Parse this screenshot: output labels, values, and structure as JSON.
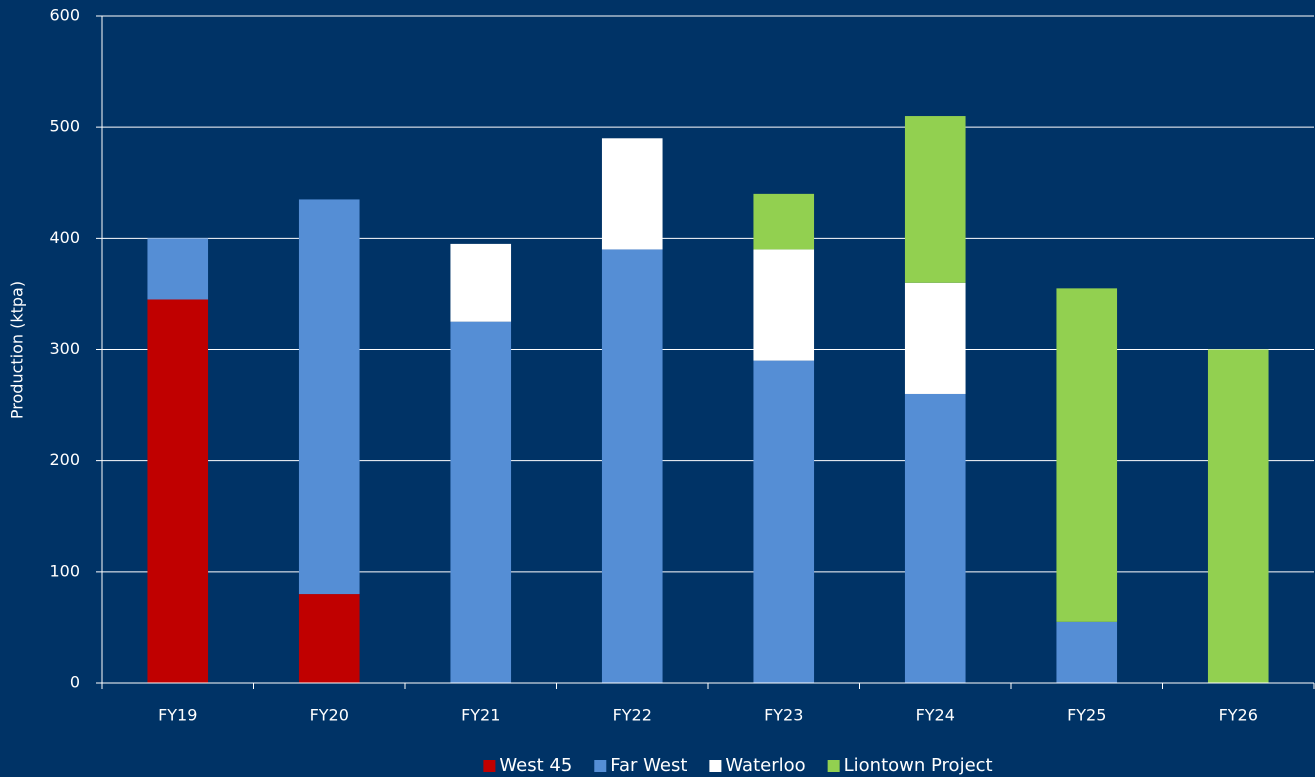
{
  "chart_data": {
    "type": "stacked_bar",
    "y_label": "Production (ktpa)",
    "categories": [
      "FY19",
      "FY20",
      "FY21",
      "FY22",
      "FY23",
      "FY24",
      "FY25",
      "FY26"
    ],
    "series": [
      {
        "name": "West 45",
        "color": "#c00000",
        "values": [
          345,
          80,
          null,
          null,
          null,
          null,
          null,
          null
        ]
      },
      {
        "name": "Far West",
        "color": "#558ed5",
        "values": [
          55,
          355,
          325,
          390,
          290,
          260,
          55,
          null
        ]
      },
      {
        "name": "Waterloo",
        "color": "#ffffff",
        "values": [
          null,
          null,
          70,
          100,
          100,
          100,
          null,
          null
        ]
      },
      {
        "name": "Liontown Project",
        "color": "#92d050",
        "values": [
          null,
          null,
          null,
          null,
          50,
          150,
          300,
          300
        ]
      }
    ],
    "ylim": [
      0,
      600
    ],
    "yticks": [
      0,
      100,
      200,
      300,
      400,
      500,
      600
    ],
    "grid": true,
    "legend": "bottom"
  }
}
